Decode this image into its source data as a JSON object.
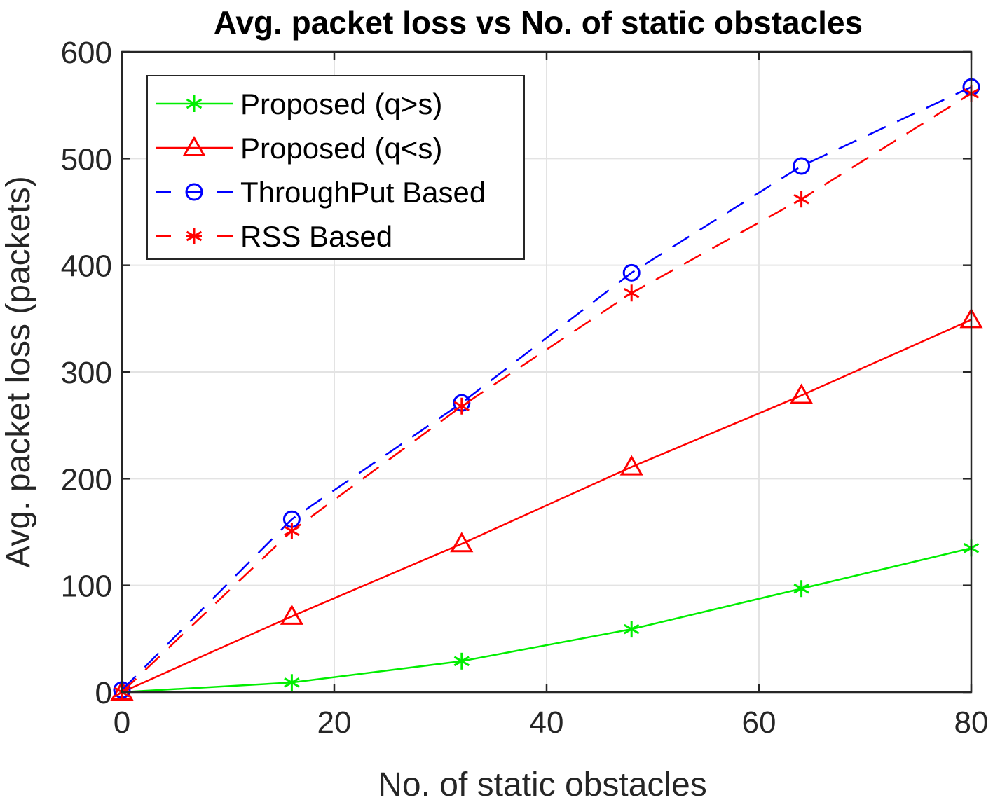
{
  "chart_data": {
    "type": "line",
    "title": "Avg. packet loss vs No. of static obstacles",
    "xlabel": "No. of static obstacles",
    "ylabel": "Avg. packet loss (packets)",
    "xlim": [
      0,
      80
    ],
    "ylim": [
      0,
      600
    ],
    "xticks": [
      0,
      20,
      40,
      60,
      80
    ],
    "yticks": [
      0,
      100,
      200,
      300,
      400,
      500,
      600
    ],
    "xtick_labels": [
      "0",
      "20",
      "40",
      "60",
      "80"
    ],
    "ytick_labels": [
      "0",
      "100",
      "200",
      "300",
      "400",
      "500",
      "600"
    ],
    "grid": true,
    "legend_position": "top-left",
    "x": [
      0,
      16,
      32,
      48,
      64,
      80
    ],
    "series": [
      {
        "name": "Proposed (q>s)",
        "color": "#00ee00",
        "marker": "asterisk",
        "dash": "solid",
        "values": [
          0,
          9,
          29,
          59,
          97,
          135
        ]
      },
      {
        "name": "Proposed (q<s)",
        "color": "#ff0000",
        "marker": "triangle",
        "dash": "solid",
        "values": [
          0,
          71,
          139,
          211,
          278,
          349
        ]
      },
      {
        "name": "ThroughPut Based",
        "color": "#0000ff",
        "marker": "circle",
        "dash": "dashed",
        "values": [
          2,
          162,
          271,
          393,
          493,
          567
        ]
      },
      {
        "name": "RSS Based",
        "color": "#ff0000",
        "marker": "asterisk",
        "dash": "dashed",
        "values": [
          0,
          151,
          268,
          374,
          462,
          561
        ]
      }
    ]
  }
}
